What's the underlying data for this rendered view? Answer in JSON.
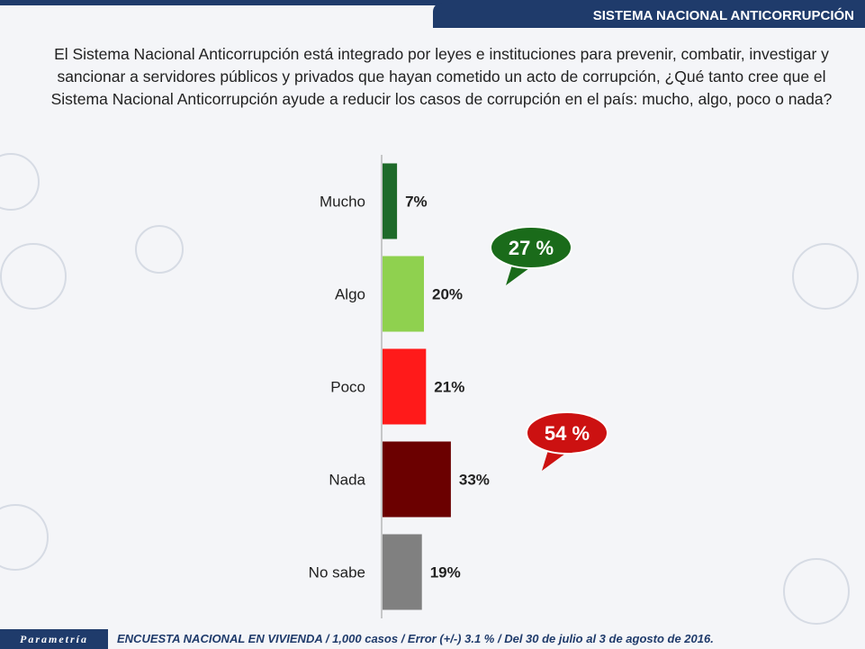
{
  "header": {
    "title": "SISTEMA NACIONAL ANTICORRUPCIÓN"
  },
  "question": "El Sistema Nacional Anticorrupción está integrado por leyes e instituciones para prevenir, combatir, investigar y sancionar a servidores públicos y privados que hayan cometido un acto de corrupción, ¿Qué tanto cree que el Sistema Nacional Anticorrupción ayude a reducir los casos de corrupción en el país: mucho, algo, poco o nada?",
  "footer": {
    "brand": "Parametría",
    "note": "ENCUESTA NACIONAL EN VIVIENDA / 1,000 casos / Error (+/-) 3.1 % / Del 30 de julio al 3 de agosto de 2016."
  },
  "chart_data": {
    "type": "bar",
    "orientation": "horizontal",
    "categories": [
      "Mucho",
      "Algo",
      "Poco",
      "Nada",
      "No sabe"
    ],
    "values": [
      7,
      20,
      21,
      33,
      19
    ],
    "value_labels": [
      "7%",
      "20%",
      "21%",
      "33%",
      "19%"
    ],
    "colors": [
      "#1e6a2a",
      "#8fd14f",
      "#ff1a1a",
      "#6b0000",
      "#808080"
    ],
    "xlim": [
      0,
      100
    ],
    "annotations": [
      {
        "text": "27 %",
        "color": "#1a6b1a",
        "groups": [
          "Mucho",
          "Algo"
        ]
      },
      {
        "text": "54 %",
        "color": "#cc1111",
        "groups": [
          "Poco",
          "Nada"
        ]
      }
    ]
  }
}
